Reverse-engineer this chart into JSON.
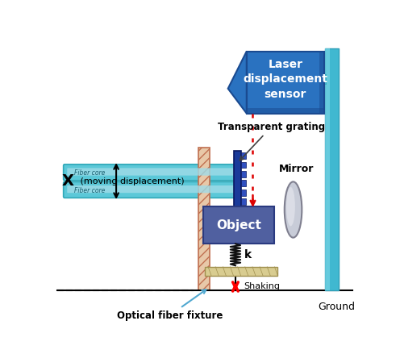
{
  "bg_color": "#ffffff",
  "fiber_color": "#5bc8d8",
  "fiber_core_color": "#a0dce8",
  "fixture_fc": "#e8c8a8",
  "fixture_ec": "#c07050",
  "grating_color": "#1a3a9a",
  "grating_notch_color": "#3050c0",
  "object_color": "#5060a0",
  "object_ec": "#2a3a80",
  "laser_color": "#2a72c0",
  "laser_ec": "#1a4a90",
  "pole_color": "#40b8d0",
  "pole_ec": "#30a0b8",
  "mirror_fc": "#c8ccd8",
  "mirror_ec": "#909090",
  "ground_color": "#000000",
  "shaking_platform_fc": "#d8cc90",
  "shaking_platform_ec": "#a09050",
  "beam_color": "#dd0000",
  "spring_color": "#111111",
  "arrow_x_color": "#111111",
  "grating_label_arrow": "#444444",
  "fixture_arrow_color": "#60b0d0",
  "labels": {
    "laser_sensor": "Laser\ndisplacement\nsensor",
    "transparent_grating": "Transparent grating",
    "mirror": "Mirror",
    "x_bold": "X",
    "x_rest": " (moving displacement)",
    "shaking": "Shaking",
    "k": "k",
    "optical_fiber_fixture": "Optical fiber fixture",
    "ground": "Ground",
    "fiber_core": "Fiber core"
  }
}
